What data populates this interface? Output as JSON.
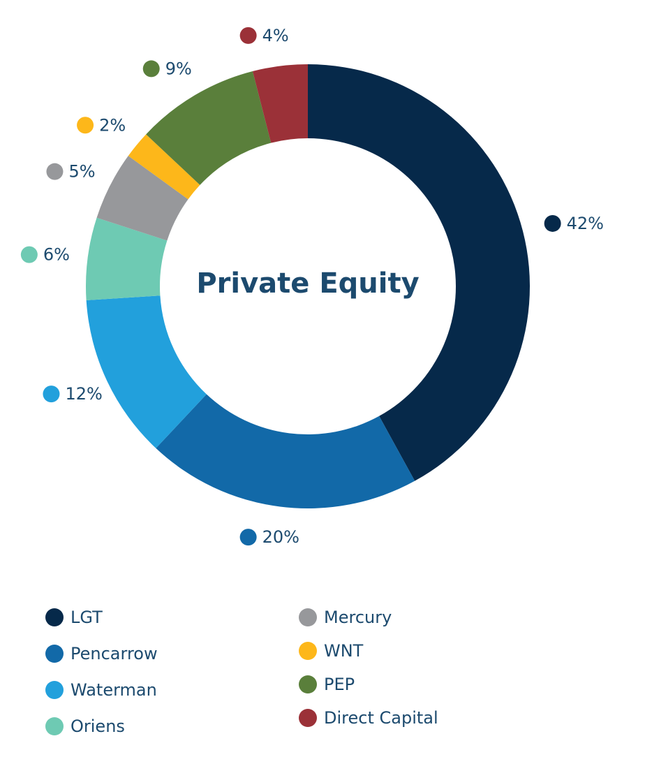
{
  "chart_data": {
    "type": "donut",
    "title": "Private Equity",
    "categories": [
      "LGT",
      "Pencarrow",
      "Waterman",
      "Oriens",
      "Mercury",
      "WNT",
      "PEP",
      "Direct Capital"
    ],
    "values": [
      42,
      20,
      12,
      6,
      5,
      2,
      9,
      4
    ],
    "value_labels": [
      "42%",
      "20%",
      "12%",
      "6%",
      "5%",
      "2%",
      "9%",
      "4%"
    ],
    "colors": [
      "#06294a",
      "#1269a8",
      "#22a0dc",
      "#6ecab3",
      "#97989b",
      "#fdb71a",
      "#5a7f3b",
      "#9b3138"
    ]
  }
}
